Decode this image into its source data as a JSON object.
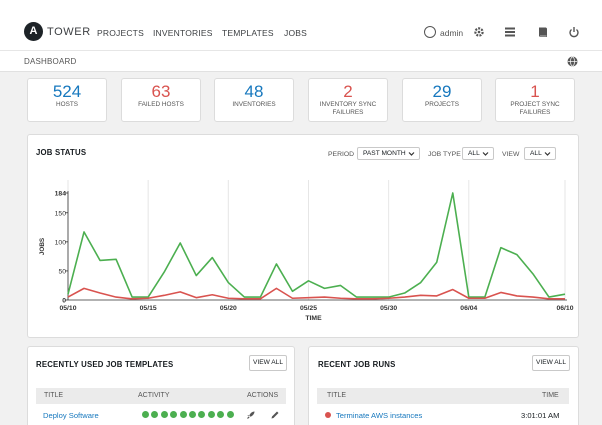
{
  "nav": {
    "brand": "TOWER",
    "logo_letter": "A",
    "links": [
      "PROJECTS",
      "INVENTORIES",
      "TEMPLATES",
      "JOBS"
    ],
    "user": "admin"
  },
  "breadcrumb": "DASHBOARD",
  "stats": [
    {
      "value": "524",
      "label": "HOSTS",
      "color": "#1778be"
    },
    {
      "value": "63",
      "label": "FAILED HOSTS",
      "color": "#d9534f"
    },
    {
      "value": "48",
      "label": "INVENTORIES",
      "color": "#1778be"
    },
    {
      "value": "2",
      "label": "INVENTORY SYNC\nFAILURES",
      "color": "#d9534f"
    },
    {
      "value": "29",
      "label": "PROJECTS",
      "color": "#1778be"
    },
    {
      "value": "1",
      "label": "PROJECT SYNC\nFAILURES",
      "color": "#d9534f"
    }
  ],
  "job_status": {
    "title": "JOB STATUS",
    "filters": {
      "period_label": "PERIOD",
      "period_value": "PAST MONTH",
      "job_type_label": "JOB TYPE",
      "job_type_value": "ALL",
      "view_label": "VIEW",
      "view_value": "ALL"
    }
  },
  "chart_data": {
    "type": "line",
    "xlabel": "TIME",
    "ylabel": "JOBS",
    "ylim": [
      0,
      184
    ],
    "yticks": [
      0,
      50,
      100,
      150,
      184
    ],
    "x_tick_labels": [
      "05/10",
      "05/15",
      "05/20",
      "05/25",
      "05/30",
      "06/04",
      "06/10"
    ],
    "x": [
      "05/10",
      "05/11",
      "05/12",
      "05/13",
      "05/14",
      "05/15",
      "05/16",
      "05/17",
      "05/18",
      "05/19",
      "05/20",
      "05/21",
      "05/22",
      "05/23",
      "05/24",
      "05/25",
      "05/26",
      "05/27",
      "05/28",
      "05/29",
      "05/30",
      "05/31",
      "06/01",
      "06/02",
      "06/03",
      "06/04",
      "06/05",
      "06/06",
      "06/07",
      "06/08",
      "06/09",
      "06/10"
    ],
    "grid": "vertical",
    "series": [
      {
        "color": "#4caf50",
        "values": [
          10,
          117,
          68,
          70,
          5,
          5,
          48,
          98,
          42,
          73,
          30,
          5,
          5,
          62,
          15,
          33,
          20,
          25,
          5,
          5,
          5,
          12,
          30,
          65,
          184,
          5,
          5,
          90,
          78,
          45,
          5,
          10
        ]
      },
      {
        "color": "#d9534f",
        "values": [
          5,
          20,
          12,
          5,
          2,
          3,
          8,
          14,
          4,
          9,
          3,
          2,
          2,
          20,
          3,
          4,
          5,
          3,
          2,
          2,
          3,
          5,
          8,
          7,
          18,
          3,
          3,
          13,
          7,
          5,
          2,
          2
        ]
      }
    ]
  },
  "templates_panel": {
    "title": "RECENTLY USED JOB TEMPLATES",
    "view_all": "VIEW ALL",
    "headers": [
      "TITLE",
      "ACTIVITY",
      "ACTIONS"
    ],
    "rows": [
      {
        "title": "Deploy Software",
        "activity": [
          "success",
          "success",
          "success",
          "success",
          "success",
          "success",
          "success",
          "success",
          "success",
          "success"
        ]
      }
    ]
  },
  "runs_panel": {
    "title": "RECENT JOB RUNS",
    "view_all": "VIEW ALL",
    "headers": [
      "TITLE",
      "TIME"
    ],
    "rows": [
      {
        "title": "Terminate AWS instances",
        "status_color": "#d9534f",
        "time": "3:01:01 AM"
      }
    ]
  }
}
